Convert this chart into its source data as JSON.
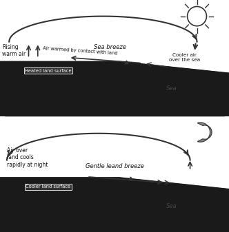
{
  "bg_color": "#ffffff",
  "land_color": "#1a1a1a",
  "sea_color": "#cccccc",
  "text_color": "#111111",
  "top_panel": {
    "rising_warm_air": "Rising\nwarm air",
    "sea_breeze_label": "Sea breeze",
    "air_warmed_label": "Air warmed by contact with land",
    "cooler_air_label": "Cooler air\nover the sea",
    "heated_land_label": "Heated land surface",
    "sea_label": "Sea"
  },
  "bottom_panel": {
    "air_over_land": "Air over\nland cools\nrapidly at night",
    "gentle_land_breeze": "Gentle leand breeze",
    "cooler_land_label": "Cooler land surface",
    "sea_label": "Sea"
  }
}
